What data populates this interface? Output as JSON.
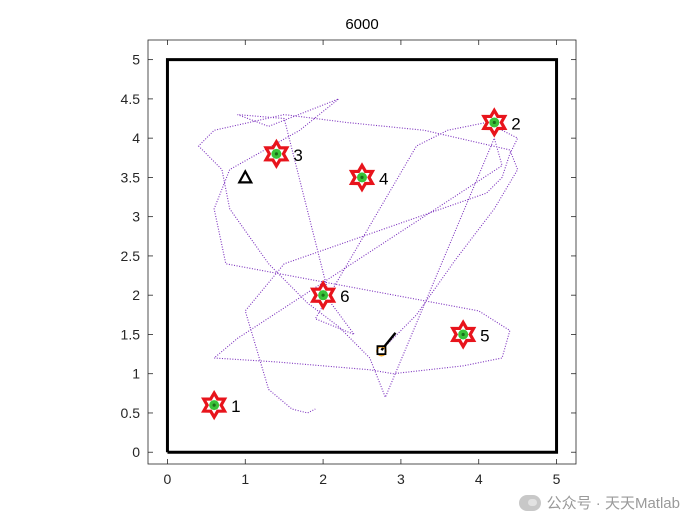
{
  "chart_data": {
    "type": "scatter",
    "title": "6000",
    "xlim": [
      -0.25,
      5.25
    ],
    "ylim": [
      -0.15,
      5.25
    ],
    "xticks": [
      0,
      1,
      2,
      3,
      4,
      5
    ],
    "yticks": [
      0,
      0.5,
      1,
      1.5,
      2,
      2.5,
      3,
      3.5,
      4,
      4.5,
      5
    ],
    "xtick_labels": [
      "0",
      "1",
      "2",
      "3",
      "4",
      "5"
    ],
    "ytick_labels": [
      "0",
      "0.5",
      "1",
      "1.5",
      "2",
      "2.5",
      "3",
      "3.5",
      "4",
      "4.5",
      "5"
    ],
    "grid": false,
    "boundary": {
      "x": [
        0,
        5,
        5,
        0,
        0
      ],
      "y": [
        0,
        0,
        5,
        5,
        0
      ],
      "color": "#000000"
    },
    "targets": [
      {
        "label": "1",
        "x": 0.6,
        "y": 0.6
      },
      {
        "label": "2",
        "x": 4.2,
        "y": 4.2
      },
      {
        "label": "3",
        "x": 1.4,
        "y": 3.8
      },
      {
        "label": "4",
        "x": 2.5,
        "y": 3.5
      },
      {
        "label": "5",
        "x": 3.8,
        "y": 1.5
      },
      {
        "label": "6",
        "x": 2.0,
        "y": 2.0
      }
    ],
    "start_marker": {
      "x": 1.0,
      "y": 3.5
    },
    "agent": {
      "x": 2.75,
      "y": 1.3,
      "heading_to": {
        "x": 2.93,
        "y": 1.52
      }
    },
    "trajectory": {
      "x": [
        2.93,
        2.75,
        3.2,
        3.7,
        4.2,
        4.5,
        4.4,
        3.3,
        2.3,
        1.5,
        0.6,
        0.4,
        0.7,
        0.8,
        1.3,
        1.8,
        2.2,
        2.6,
        2.8,
        4.2,
        4.3,
        0.9,
        0.6,
        1.4,
        2.0,
        2.6,
        2.9,
        3.8,
        4.3,
        4.4,
        4.0,
        0.75,
        0.6,
        0.8,
        1.7,
        2.2,
        1.3,
        0.9,
        1.5,
        2.1,
        2.4,
        1.9,
        3.2,
        3.6,
        4.1,
        4.3,
        4.5,
        4.4,
        4.3,
        4.1,
        1.5,
        1.0,
        1.3,
        1.6,
        1.8,
        1.9
      ],
      "y": [
        1.52,
        1.3,
        1.75,
        2.45,
        3.1,
        3.6,
        3.85,
        4.1,
        4.2,
        4.3,
        4.1,
        3.9,
        3.6,
        3.1,
        2.4,
        1.9,
        1.6,
        1.2,
        0.7,
        4.0,
        3.65,
        1.45,
        1.2,
        1.15,
        1.1,
        1.05,
        1.0,
        1.1,
        1.2,
        1.55,
        1.8,
        2.4,
        3.1,
        3.6,
        4.1,
        4.5,
        4.15,
        4.3,
        4.25,
        1.9,
        1.5,
        1.7,
        3.9,
        4.1,
        4.2,
        4.1,
        4.0,
        3.8,
        3.5,
        3.3,
        2.4,
        1.8,
        0.8,
        0.55,
        0.5,
        0.55
      ]
    },
    "colors": {
      "trajectory": "#7b2fbe",
      "star_outline": "#e8141c",
      "star_fill": "#38c238",
      "agent_square": "#000000",
      "agent_body": "#f0a020"
    }
  },
  "watermark": {
    "text": "公众号 · 天天Matlab"
  }
}
